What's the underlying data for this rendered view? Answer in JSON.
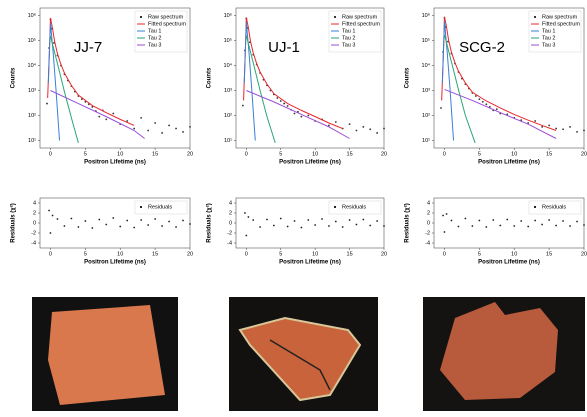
{
  "chart_data": [
    {
      "type": "line",
      "annotation": "JJ-7",
      "ylabel": "Counts",
      "xlabel": "Positron Lifetime (ns)",
      "log_y": true,
      "legend": "upper right",
      "xlim": [
        -1.5,
        20
      ],
      "xticks": [
        0,
        5,
        10,
        15,
        20
      ],
      "ylim": [
        5,
        2000000
      ],
      "yticks": [
        {
          "value": 10,
          "label": "10¹"
        },
        {
          "value": 100,
          "label": "10²"
        },
        {
          "value": 1000,
          "label": "10³"
        },
        {
          "value": 10000,
          "label": "10⁴"
        },
        {
          "value": 100000,
          "label": "10⁵"
        },
        {
          "value": 1000000,
          "label": "10⁶"
        }
      ],
      "series": [
        {
          "name": "Raw spectrum",
          "kind": "scatter",
          "color": "#333333",
          "x": [
            -0.5,
            -0.2,
            0,
            0.2,
            0.5,
            1,
            1.5,
            2,
            2.5,
            3,
            3.5,
            4,
            4.5,
            5,
            5.5,
            6,
            6.5,
            7,
            7.5,
            8,
            9,
            10,
            11,
            12,
            13,
            14,
            15,
            16,
            17,
            18,
            19,
            20
          ],
          "values": [
            300,
            50000,
            700000,
            300000,
            80000,
            25000,
            10000,
            4500,
            2500,
            1500,
            900,
            600,
            450,
            350,
            280,
            220,
            150,
            90,
            160,
            70,
            120,
            45,
            60,
            30,
            80,
            25,
            50,
            20,
            40,
            30,
            22,
            35
          ]
        },
        {
          "name": "Fitted spectrum",
          "kind": "line",
          "color": "#e8262a",
          "x": [
            -0.4,
            -0.1,
            0,
            0.3,
            0.6,
            1,
            1.5,
            2,
            3,
            4,
            6,
            8,
            10,
            12
          ],
          "values": [
            500,
            100000,
            800000,
            300000,
            90000,
            30000,
            11000,
            5000,
            1600,
            650,
            250,
            130,
            70,
            40
          ]
        },
        {
          "name": "Tau 1",
          "kind": "line",
          "color": "#3a7fd5",
          "x": [
            -0.3,
            0,
            0.4,
            0.8,
            1.3
          ],
          "values": [
            2000,
            500000,
            30000,
            1000,
            10
          ]
        },
        {
          "name": "Tau 2",
          "kind": "line",
          "color": "#2aa672",
          "x": [
            0,
            1,
            2,
            3,
            4
          ],
          "values": [
            150000,
            12000,
            900,
            80,
            8
          ]
        },
        {
          "name": "Tau 3",
          "kind": "line",
          "color": "#9b4fd6",
          "x": [
            0,
            4,
            8,
            12,
            13.5
          ],
          "values": [
            1000,
            300,
            90,
            25,
            12
          ]
        }
      ]
    },
    {
      "type": "scatter",
      "ylabel": "Residuals (χ²)",
      "xlabel": "Positron Lifetime (ns)",
      "legend": "upper right",
      "xlim": [
        -1.5,
        20
      ],
      "xticks": [
        0,
        5,
        10,
        15,
        20
      ],
      "ylim": [
        -5,
        5
      ],
      "yticks": [
        -4,
        -2,
        0,
        2,
        4
      ],
      "series": [
        {
          "name": "Residuals",
          "kind": "scatter",
          "color": "#222222",
          "x": [
            -0.2,
            0,
            0.3,
            1,
            2,
            3,
            4,
            5,
            6,
            7,
            8,
            9,
            10,
            11,
            12,
            13,
            14,
            15,
            16,
            17,
            18,
            19,
            20
          ],
          "values": [
            2.5,
            -2,
            1.5,
            0.8,
            -0.6,
            0.9,
            -0.8,
            0.4,
            -1,
            0.7,
            -0.3,
            1,
            -0.7,
            0.5,
            -0.9,
            0.6,
            -0.4,
            0.8,
            -0.6,
            0.3,
            -0.8,
            0.5,
            -0.2
          ]
        }
      ]
    },
    {
      "type": "line",
      "annotation": "UJ-1",
      "ylabel": "Counts",
      "xlabel": "Positron Lifetime (ns)",
      "log_y": true,
      "legend": "upper right",
      "xlim": [
        -1.5,
        20
      ],
      "xticks": [
        0,
        5,
        10,
        15,
        20
      ],
      "ylim": [
        5,
        2000000
      ],
      "yticks": [
        {
          "value": 10,
          "label": "10¹"
        },
        {
          "value": 100,
          "label": "10²"
        },
        {
          "value": 1000,
          "label": "10³"
        },
        {
          "value": 10000,
          "label": "10⁴"
        },
        {
          "value": 100000,
          "label": "10⁵"
        },
        {
          "value": 1000000,
          "label": "10⁶"
        }
      ],
      "series": [
        {
          "name": "Raw spectrum",
          "kind": "scatter",
          "color": "#333333",
          "x": [
            -0.5,
            -0.2,
            0,
            0.2,
            0.5,
            1,
            1.5,
            2,
            2.5,
            3,
            3.5,
            4,
            4.5,
            5,
            5.5,
            6,
            6.5,
            7,
            7.5,
            8,
            9,
            10,
            11,
            12,
            13,
            14,
            15,
            16,
            17,
            18,
            19,
            20
          ],
          "values": [
            250,
            40000,
            750000,
            320000,
            85000,
            27000,
            11000,
            5000,
            2700,
            1600,
            1000,
            700,
            500,
            380,
            300,
            240,
            170,
            120,
            140,
            90,
            100,
            60,
            70,
            40,
            55,
            30,
            45,
            25,
            35,
            28,
            20,
            30
          ]
        },
        {
          "name": "Fitted spectrum",
          "kind": "line",
          "color": "#e8262a",
          "x": [
            -0.4,
            -0.1,
            0,
            0.3,
            0.6,
            1,
            1.5,
            2,
            3,
            4,
            6,
            8,
            10,
            12,
            14
          ],
          "values": [
            400,
            90000,
            850000,
            320000,
            95000,
            32000,
            12000,
            5500,
            1800,
            750,
            300,
            160,
            90,
            50,
            30
          ]
        },
        {
          "name": "Tau 1",
          "kind": "line",
          "color": "#3a7fd5",
          "x": [
            -0.3,
            0,
            0.4,
            0.8,
            1.3
          ],
          "values": [
            2000,
            550000,
            30000,
            1000,
            10
          ]
        },
        {
          "name": "Tau 2",
          "kind": "line",
          "color": "#2aa672",
          "x": [
            0,
            1,
            2,
            3,
            4.2
          ],
          "values": [
            160000,
            13000,
            1000,
            90,
            8
          ]
        },
        {
          "name": "Tau 3",
          "kind": "line",
          "color": "#9b4fd6",
          "x": [
            0,
            4,
            8,
            12,
            15
          ],
          "values": [
            1000,
            350,
            110,
            35,
            12
          ]
        }
      ]
    },
    {
      "type": "scatter",
      "ylabel": "Residuals (χ²)",
      "xlabel": "Positron Lifetime (ns)",
      "legend": "upper right",
      "xlim": [
        -1.5,
        20
      ],
      "xticks": [
        0,
        5,
        10,
        15,
        20
      ],
      "ylim": [
        -5,
        5
      ],
      "yticks": [
        -4,
        -2,
        0,
        2,
        4
      ],
      "series": [
        {
          "name": "Residuals",
          "kind": "scatter",
          "color": "#222222",
          "x": [
            -0.2,
            0,
            0.3,
            1,
            2,
            3,
            4,
            5,
            6,
            7,
            8,
            9,
            10,
            11,
            12,
            13,
            14,
            15,
            16,
            17,
            18,
            19,
            20
          ],
          "values": [
            2,
            -2.5,
            1.2,
            0.6,
            -0.8,
            0.7,
            -0.5,
            0.9,
            -0.7,
            0.4,
            -0.9,
            0.6,
            -0.4,
            0.8,
            -0.6,
            0.3,
            -0.8,
            0.6,
            -0.3,
            0.7,
            -0.5,
            0.4,
            -0.6
          ]
        }
      ]
    },
    {
      "type": "line",
      "annotation": "SCG-2",
      "ylabel": "Counts",
      "xlabel": "Positron Lifetime (ns)",
      "log_y": true,
      "legend": "upper right",
      "xlim": [
        -1.5,
        20
      ],
      "xticks": [
        0,
        5,
        10,
        15,
        20
      ],
      "ylim": [
        5,
        2000000
      ],
      "yticks": [
        {
          "value": 10,
          "label": "10¹"
        },
        {
          "value": 100,
          "label": "10²"
        },
        {
          "value": 1000,
          "label": "10³"
        },
        {
          "value": 10000,
          "label": "10⁴"
        },
        {
          "value": 100000,
          "label": "10⁵"
        },
        {
          "value": 1000000,
          "label": "10⁶"
        }
      ],
      "series": [
        {
          "name": "Raw spectrum",
          "kind": "scatter",
          "color": "#333333",
          "x": [
            -0.5,
            -0.2,
            0,
            0.2,
            0.5,
            1,
            1.5,
            2,
            2.5,
            3,
            3.5,
            4,
            4.5,
            5,
            5.5,
            6,
            6.5,
            7,
            7.5,
            8,
            9,
            10,
            11,
            12,
            13,
            14,
            15,
            16,
            17,
            18,
            19,
            20
          ],
          "values": [
            200,
            35000,
            800000,
            350000,
            90000,
            30000,
            12000,
            5500,
            3000,
            1800,
            1200,
            800,
            600,
            450,
            350,
            280,
            220,
            160,
            180,
            120,
            110,
            80,
            65,
            50,
            60,
            35,
            40,
            30,
            28,
            35,
            22,
            25
          ]
        },
        {
          "name": "Fitted spectrum",
          "kind": "line",
          "color": "#e8262a",
          "x": [
            -0.4,
            -0.1,
            0,
            0.3,
            0.6,
            1,
            1.5,
            2,
            3,
            4,
            6,
            8,
            10,
            12,
            14,
            16
          ],
          "values": [
            400,
            80000,
            900000,
            340000,
            100000,
            34000,
            13000,
            6000,
            2000,
            850,
            380,
            200,
            110,
            65,
            40,
            25
          ]
        },
        {
          "name": "Tau 1",
          "kind": "line",
          "color": "#3a7fd5",
          "x": [
            -0.3,
            0,
            0.4,
            0.8,
            1.3
          ],
          "values": [
            2000,
            600000,
            32000,
            1100,
            10
          ]
        },
        {
          "name": "Tau 2",
          "kind": "line",
          "color": "#2aa672",
          "x": [
            0,
            1,
            2,
            3,
            4.4
          ],
          "values": [
            170000,
            14000,
            1100,
            100,
            8
          ]
        },
        {
          "name": "Tau 3",
          "kind": "line",
          "color": "#9b4fd6",
          "x": [
            0,
            4,
            8,
            12,
            16
          ],
          "values": [
            1100,
            400,
            130,
            45,
            12
          ]
        }
      ]
    },
    {
      "type": "scatter",
      "ylabel": "Residuals (χ²)",
      "xlabel": "Positron Lifetime (ns)",
      "legend": "upper right",
      "xlim": [
        -1.5,
        20
      ],
      "xticks": [
        0,
        5,
        10,
        15,
        20
      ],
      "ylim": [
        -5,
        5
      ],
      "yticks": [
        -4,
        -2,
        0,
        2,
        4
      ],
      "series": [
        {
          "name": "Residuals",
          "kind": "scatter",
          "color": "#222222",
          "x": [
            -0.2,
            0,
            0.3,
            1,
            2,
            3,
            4,
            5,
            6,
            7,
            8,
            9,
            10,
            11,
            12,
            13,
            14,
            15,
            16,
            17,
            18,
            19,
            20
          ],
          "values": [
            1.5,
            -1.8,
            1.8,
            0.5,
            -0.7,
            0.9,
            -0.6,
            0.5,
            -0.8,
            0.6,
            -0.5,
            0.7,
            -0.6,
            0.4,
            -0.7,
            0.5,
            -0.3,
            0.6,
            -0.5,
            0.4,
            -0.6,
            0.3,
            -0.4
          ]
        }
      ]
    }
  ]
}
